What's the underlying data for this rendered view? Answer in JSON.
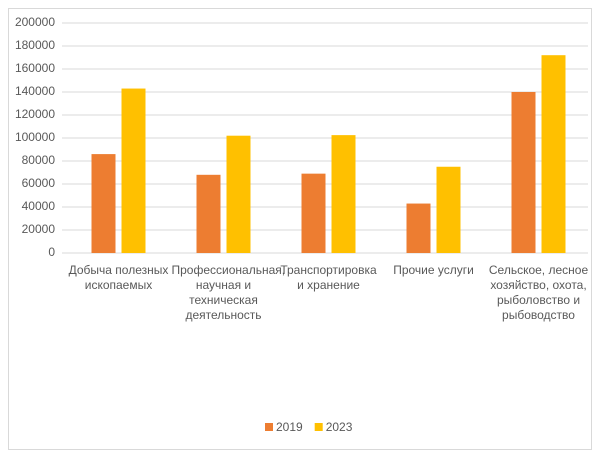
{
  "chart_data": {
    "type": "bar",
    "categories": [
      "Добыча полезных ископаемых",
      "Профессиональная, научная и техническая деятельность",
      "Транспортировка и хранение",
      "Прочие услуги",
      "Сельское, лесное хозяйство, охота, рыболовство и рыбоводство"
    ],
    "series": [
      {
        "name": "2019",
        "color": "#ed7d31",
        "values": [
          86000,
          68000,
          69000,
          43000,
          140000
        ]
      },
      {
        "name": "2023",
        "color": "#ffc000",
        "values": [
          143000,
          102000,
          102500,
          75000,
          172000
        ]
      }
    ],
    "ylim": [
      0,
      200000
    ],
    "yticks": [
      0,
      20000,
      40000,
      60000,
      80000,
      100000,
      120000,
      140000,
      160000,
      180000,
      200000
    ],
    "grid": true,
    "legend": "bottom"
  }
}
